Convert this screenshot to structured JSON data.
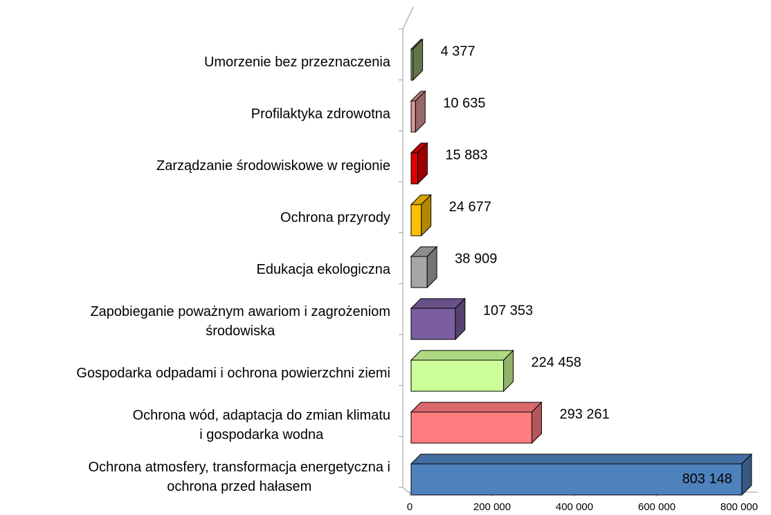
{
  "chart_data": {
    "type": "bar",
    "orientation": "horizontal",
    "categories": [
      "Umorzenie bez przeznaczenia",
      "Profilaktyka zdrowotna",
      "Zarządzanie środowiskowe w regionie",
      "Ochrona przyrody",
      "Edukacja ekologiczna",
      "Zapobieganie poważnym awariom i zagrożeniom\nśrodowiska",
      "Gospodarka odpadami i ochrona powierzchni ziemi",
      "Ochrona wód, adaptacja do zmian klimatu\ni gospodarka wodna",
      "Ochrona atmosfery, transformacja energetyczna i\nochrona przed hałasem"
    ],
    "values": [
      4377,
      10635,
      15883,
      24677,
      38909,
      107353,
      224458,
      293261,
      803148
    ],
    "value_labels": [
      "4 377",
      "10 635",
      "15 883",
      "24 677",
      "38 909",
      "107 353",
      "224 458",
      "293 261",
      "803 148"
    ],
    "colors": [
      "#8ea46e",
      "#d99694",
      "#e00000",
      "#ffc000",
      "#a6a6a6",
      "#7a5ea0",
      "#ccff99",
      "#ff7c80",
      "#4f81bd"
    ],
    "xlim": [
      0,
      800000
    ],
    "xticks": [
      0,
      {
        "value": 200000,
        "label": "200 000"
      },
      {
        "value": 400000,
        "label": "400 000"
      },
      {
        "value": 600000,
        "label": "600 000"
      },
      {
        "value": 800000,
        "label": "800 000"
      }
    ]
  }
}
